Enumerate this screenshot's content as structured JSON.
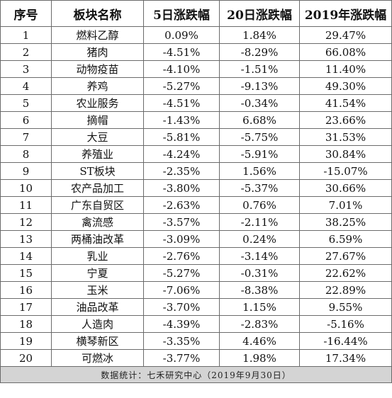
{
  "table": {
    "headers": [
      "序号",
      "板块名称",
      "5日涨跌幅",
      "20日涨跌幅",
      "2019年涨跌幅"
    ],
    "rows": [
      [
        "1",
        "燃料乙醇",
        "0.09%",
        "1.84%",
        "29.47%"
      ],
      [
        "2",
        "猪肉",
        "-4.51%",
        "-8.29%",
        "66.08%"
      ],
      [
        "3",
        "动物疫苗",
        "-4.10%",
        "-1.51%",
        "11.40%"
      ],
      [
        "4",
        "养鸡",
        "-5.27%",
        "-9.13%",
        "49.30%"
      ],
      [
        "5",
        "农业服务",
        "-4.51%",
        "-0.34%",
        "41.54%"
      ],
      [
        "6",
        "摘帽",
        "-1.43%",
        "6.68%",
        "23.66%"
      ],
      [
        "7",
        "大豆",
        "-5.81%",
        "-5.75%",
        "31.53%"
      ],
      [
        "8",
        "养殖业",
        "-4.24%",
        "-5.91%",
        "30.84%"
      ],
      [
        "9",
        "ST板块",
        "-2.35%",
        "1.56%",
        "-15.07%"
      ],
      [
        "10",
        "农产品加工",
        "-3.80%",
        "-5.37%",
        "30.66%"
      ],
      [
        "11",
        "广东自贸区",
        "-2.63%",
        "0.76%",
        "7.01%"
      ],
      [
        "12",
        "禽流感",
        "-3.57%",
        "-2.11%",
        "38.25%"
      ],
      [
        "13",
        "两桶油改革",
        "-3.09%",
        "0.24%",
        "6.59%"
      ],
      [
        "14",
        "乳业",
        "-2.76%",
        "-3.14%",
        "27.67%"
      ],
      [
        "15",
        "宁夏",
        "-5.27%",
        "-0.31%",
        "22.62%"
      ],
      [
        "16",
        "玉米",
        "-7.06%",
        "-8.38%",
        "22.89%"
      ],
      [
        "17",
        "油品改革",
        "-3.70%",
        "1.15%",
        "9.55%"
      ],
      [
        "18",
        "人造肉",
        "-4.39%",
        "-2.83%",
        "-5.16%"
      ],
      [
        "19",
        "横琴新区",
        "-3.35%",
        "4.46%",
        "-16.44%"
      ],
      [
        "20",
        "可燃冰",
        "-3.77%",
        "1.98%",
        "17.34%"
      ]
    ],
    "footer": "数据统计：七禾研究中心（2019年9月30日）"
  }
}
